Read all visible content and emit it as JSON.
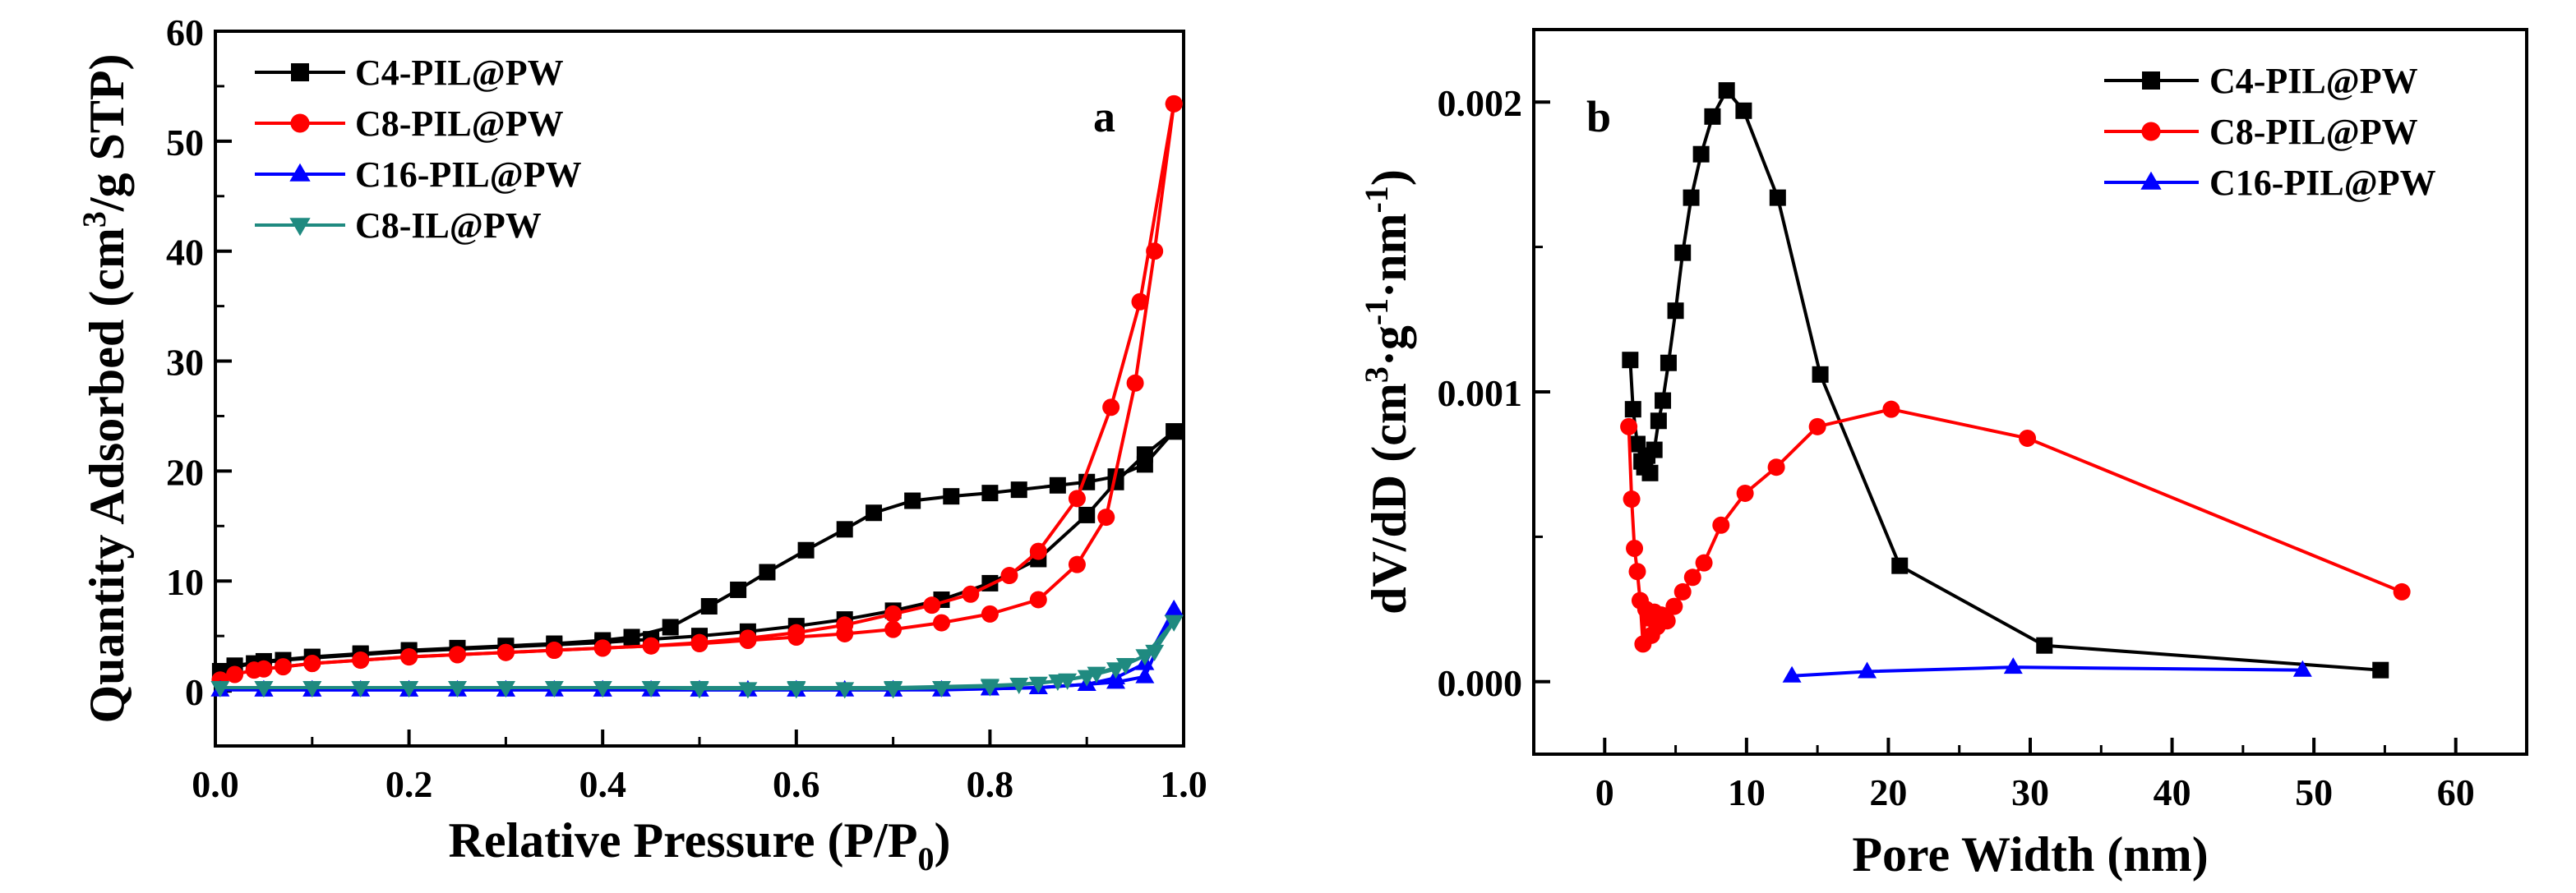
{
  "chart_data": [
    {
      "panel_label": "a",
      "type": "line",
      "xlabel_main": "Relative Pressure (P/P",
      "xlabel_sub": "0",
      "xlabel_end": ")",
      "ylabel_pre": "Quantity Adsorbed (cm",
      "ylabel_sup": "3",
      "ylabel_post": "/g STP)",
      "xlim": [
        0.0,
        1.0
      ],
      "ylim": [
        -5,
        60
      ],
      "xticks": [
        "0.0",
        "0.2",
        "0.4",
        "0.6",
        "0.8",
        "1.0"
      ],
      "yticks": [
        "0",
        "10",
        "20",
        "30",
        "40",
        "50",
        "60"
      ],
      "legend": [
        "C4-PIL@PW",
        "C8-PIL@PW",
        "C16-PIL@PW",
        "C8-IL@PW"
      ],
      "series": [
        {
          "name": "C4-PIL@PW",
          "color": "#000000",
          "marker": "square",
          "adsorption": [
            [
              0.005,
              1.8
            ],
            [
              0.02,
              2.2
            ],
            [
              0.04,
              2.5
            ],
            [
              0.07,
              2.8
            ],
            [
              0.1,
              3.0
            ],
            [
              0.15,
              3.3
            ],
            [
              0.2,
              3.6
            ],
            [
              0.25,
              3.8
            ],
            [
              0.3,
              4.0
            ],
            [
              0.35,
              4.2
            ],
            [
              0.4,
              4.4
            ],
            [
              0.45,
              4.7
            ],
            [
              0.5,
              5.0
            ],
            [
              0.55,
              5.4
            ],
            [
              0.6,
              5.9
            ],
            [
              0.65,
              6.5
            ],
            [
              0.7,
              7.3
            ],
            [
              0.75,
              8.3
            ],
            [
              0.8,
              9.8
            ],
            [
              0.85,
              12.0
            ],
            [
              0.9,
              16.0
            ],
            [
              0.93,
              19.0
            ],
            [
              0.96,
              21.5
            ],
            [
              0.99,
              23.6
            ]
          ],
          "desorption": [
            [
              0.99,
              23.6
            ],
            [
              0.96,
              20.6
            ],
            [
              0.93,
              19.5
            ],
            [
              0.9,
              19.0
            ],
            [
              0.87,
              18.7
            ],
            [
              0.83,
              18.3
            ],
            [
              0.8,
              18.0
            ],
            [
              0.76,
              17.7
            ],
            [
              0.72,
              17.3
            ],
            [
              0.68,
              16.2
            ],
            [
              0.65,
              14.7
            ],
            [
              0.61,
              12.8
            ],
            [
              0.57,
              10.8
            ],
            [
              0.54,
              9.2
            ],
            [
              0.51,
              7.7
            ],
            [
              0.47,
              5.8
            ],
            [
              0.43,
              4.9
            ],
            [
              0.4,
              4.6
            ],
            [
              0.35,
              4.3
            ],
            [
              0.3,
              4.1
            ],
            [
              0.25,
              3.9
            ],
            [
              0.2,
              3.7
            ],
            [
              0.15,
              3.4
            ],
            [
              0.1,
              3.1
            ],
            [
              0.05,
              2.7
            ],
            [
              0.02,
              2.3
            ]
          ]
        },
        {
          "name": "C8-PIL@PW",
          "color": "#ff0000",
          "marker": "circle",
          "adsorption": [
            [
              0.005,
              1.0
            ],
            [
              0.02,
              1.5
            ],
            [
              0.04,
              1.9
            ],
            [
              0.07,
              2.2
            ],
            [
              0.1,
              2.5
            ],
            [
              0.15,
              2.8
            ],
            [
              0.2,
              3.1
            ],
            [
              0.25,
              3.3
            ],
            [
              0.3,
              3.5
            ],
            [
              0.35,
              3.7
            ],
            [
              0.4,
              3.9
            ],
            [
              0.45,
              4.1
            ],
            [
              0.5,
              4.3
            ],
            [
              0.55,
              4.6
            ],
            [
              0.6,
              4.9
            ],
            [
              0.65,
              5.2
            ],
            [
              0.7,
              5.6
            ],
            [
              0.75,
              6.2
            ],
            [
              0.8,
              7.0
            ],
            [
              0.85,
              8.3
            ],
            [
              0.89,
              11.5
            ],
            [
              0.92,
              15.8
            ],
            [
              0.95,
              28.0
            ],
            [
              0.97,
              40.0
            ],
            [
              0.99,
              53.4
            ]
          ],
          "desorption": [
            [
              0.99,
              53.4
            ],
            [
              0.955,
              35.4
            ],
            [
              0.925,
              25.8
            ],
            [
              0.89,
              17.5
            ],
            [
              0.85,
              12.7
            ],
            [
              0.82,
              10.5
            ],
            [
              0.78,
              8.8
            ],
            [
              0.74,
              7.8
            ],
            [
              0.7,
              7.0
            ],
            [
              0.65,
              6.0
            ],
            [
              0.6,
              5.3
            ],
            [
              0.55,
              4.8
            ],
            [
              0.5,
              4.4
            ],
            [
              0.45,
              4.1
            ],
            [
              0.4,
              3.9
            ],
            [
              0.35,
              3.7
            ],
            [
              0.3,
              3.5
            ],
            [
              0.25,
              3.3
            ],
            [
              0.2,
              3.1
            ],
            [
              0.15,
              2.8
            ],
            [
              0.1,
              2.5
            ],
            [
              0.05,
              2.0
            ]
          ]
        },
        {
          "name": "C16-PIL@PW",
          "color": "#0000ff",
          "marker": "triangle-up",
          "adsorption": [
            [
              0.005,
              0.1
            ],
            [
              0.05,
              0.1
            ],
            [
              0.1,
              0.1
            ],
            [
              0.15,
              0.1
            ],
            [
              0.2,
              0.1
            ],
            [
              0.25,
              0.1
            ],
            [
              0.3,
              0.1
            ],
            [
              0.35,
              0.1
            ],
            [
              0.4,
              0.1
            ],
            [
              0.45,
              0.1
            ],
            [
              0.5,
              0.1
            ],
            [
              0.55,
              0.1
            ],
            [
              0.6,
              0.1
            ],
            [
              0.65,
              0.1
            ],
            [
              0.7,
              0.1
            ],
            [
              0.75,
              0.1
            ],
            [
              0.8,
              0.2
            ],
            [
              0.85,
              0.3
            ],
            [
              0.9,
              0.6
            ],
            [
              0.93,
              0.8
            ],
            [
              0.96,
              1.3
            ],
            [
              0.99,
              7.4
            ]
          ],
          "desorption": [
            [
              0.99,
              7.4
            ],
            [
              0.96,
              2.5
            ],
            [
              0.93,
              1.2
            ],
            [
              0.9,
              0.6
            ],
            [
              0.85,
              0.3
            ],
            [
              0.8,
              0.2
            ],
            [
              0.7,
              0.1
            ],
            [
              0.6,
              0.1
            ],
            [
              0.5,
              0.1
            ],
            [
              0.4,
              0.1
            ],
            [
              0.3,
              0.1
            ],
            [
              0.2,
              0.1
            ],
            [
              0.1,
              0.1
            ],
            [
              0.05,
              0.1
            ]
          ]
        },
        {
          "name": "C8-IL@PW",
          "color": "#1f8a80",
          "marker": "triangle-down",
          "adsorption": [
            [
              0.005,
              0.3
            ],
            [
              0.05,
              0.3
            ],
            [
              0.1,
              0.3
            ],
            [
              0.15,
              0.3
            ],
            [
              0.2,
              0.3
            ],
            [
              0.25,
              0.3
            ],
            [
              0.3,
              0.3
            ],
            [
              0.35,
              0.3
            ],
            [
              0.4,
              0.3
            ],
            [
              0.45,
              0.3
            ],
            [
              0.5,
              0.2
            ],
            [
              0.55,
              0.2
            ],
            [
              0.6,
              0.2
            ],
            [
              0.65,
              0.2
            ],
            [
              0.7,
              0.2
            ],
            [
              0.75,
              0.3
            ],
            [
              0.8,
              0.4
            ],
            [
              0.85,
              0.7
            ],
            [
              0.88,
              1.0
            ],
            [
              0.91,
              1.6
            ],
            [
              0.94,
              2.4
            ],
            [
              0.97,
              3.6
            ],
            [
              0.99,
              6.3
            ]
          ],
          "desorption": [
            [
              0.99,
              6.3
            ],
            [
              0.96,
              3.2
            ],
            [
              0.93,
              2.0
            ],
            [
              0.9,
              1.3
            ],
            [
              0.87,
              0.9
            ],
            [
              0.83,
              0.6
            ],
            [
              0.8,
              0.5
            ],
            [
              0.7,
              0.3
            ],
            [
              0.6,
              0.3
            ],
            [
              0.5,
              0.3
            ],
            [
              0.4,
              0.3
            ],
            [
              0.3,
              0.3
            ],
            [
              0.2,
              0.3
            ],
            [
              0.1,
              0.3
            ],
            [
              0.05,
              0.3
            ]
          ]
        }
      ]
    },
    {
      "panel_label": "b",
      "type": "line",
      "xlabel": "Pore Width (nm)",
      "ylabel_a": "dV/dD  (cm",
      "ylabel_a_sup": "3",
      "ylabel_b": "·g",
      "ylabel_b_sup": "-1",
      "ylabel_c": "·nm",
      "ylabel_c_sup": "-1",
      "ylabel_d": ")",
      "xlim": [
        -5,
        65
      ],
      "ylim": [
        -0.00025,
        0.00225
      ],
      "xticks": [
        "0",
        "10",
        "20",
        "30",
        "40",
        "50",
        "60"
      ],
      "xtick_values": [
        0,
        10,
        20,
        30,
        40,
        50,
        60
      ],
      "yticks": [
        "0.000",
        "0.001",
        "0.002"
      ],
      "ytick_values": [
        0.0,
        0.001,
        0.002
      ],
      "legend": [
        "C4-PIL@PW",
        "C8-PIL@PW",
        "C16-PIL@PW"
      ],
      "series": [
        {
          "name": "C4-PIL@PW",
          "color": "#000000",
          "marker": "square",
          "points": [
            [
              1.8,
              0.00111
            ],
            [
              2.0,
              0.00094
            ],
            [
              2.3,
              0.00082
            ],
            [
              2.6,
              0.00076
            ],
            [
              2.8,
              0.00074
            ],
            [
              3.0,
              0.00078
            ],
            [
              3.2,
              0.00072
            ],
            [
              3.5,
              0.0008
            ],
            [
              3.8,
              0.0009
            ],
            [
              4.1,
              0.00097
            ],
            [
              4.5,
              0.0011
            ],
            [
              5.0,
              0.00128
            ],
            [
              5.5,
              0.00148
            ],
            [
              6.1,
              0.00167
            ],
            [
              6.8,
              0.00182
            ],
            [
              7.6,
              0.00195
            ],
            [
              8.6,
              0.00204
            ],
            [
              9.8,
              0.00197
            ],
            [
              12.2,
              0.00167
            ],
            [
              15.2,
              0.00106
            ],
            [
              20.8,
              0.0004
            ],
            [
              31.0,
              0.000125
            ],
            [
              54.7,
              4e-05
            ]
          ]
        },
        {
          "name": "C8-PIL@PW",
          "color": "#ff0000",
          "marker": "circle",
          "points": [
            [
              1.7,
              0.00088
            ],
            [
              1.9,
              0.00063
            ],
            [
              2.1,
              0.00046
            ],
            [
              2.3,
              0.00038
            ],
            [
              2.5,
              0.00028
            ],
            [
              2.7,
              0.00013
            ],
            [
              2.9,
              0.00025
            ],
            [
              3.1,
              0.00022
            ],
            [
              3.3,
              0.00016
            ],
            [
              3.5,
              0.00024
            ],
            [
              3.7,
              0.00019
            ],
            [
              4.0,
              0.00023
            ],
            [
              4.4,
              0.00021
            ],
            [
              4.9,
              0.00026
            ],
            [
              5.5,
              0.00031
            ],
            [
              6.2,
              0.00036
            ],
            [
              7.0,
              0.00041
            ],
            [
              8.2,
              0.00054
            ],
            [
              9.9,
              0.00065
            ],
            [
              12.1,
              0.00074
            ],
            [
              15.0,
              0.00088
            ],
            [
              20.2,
              0.00094
            ],
            [
              29.8,
              0.00084
            ],
            [
              56.2,
              0.00031
            ]
          ]
        },
        {
          "name": "C16-PIL@PW",
          "color": "#0000ff",
          "marker": "triangle-up",
          "points": [
            [
              13.2,
              2e-05
            ],
            [
              18.5,
              3.5e-05
            ],
            [
              28.8,
              5e-05
            ],
            [
              49.2,
              4e-05
            ]
          ]
        }
      ]
    }
  ]
}
